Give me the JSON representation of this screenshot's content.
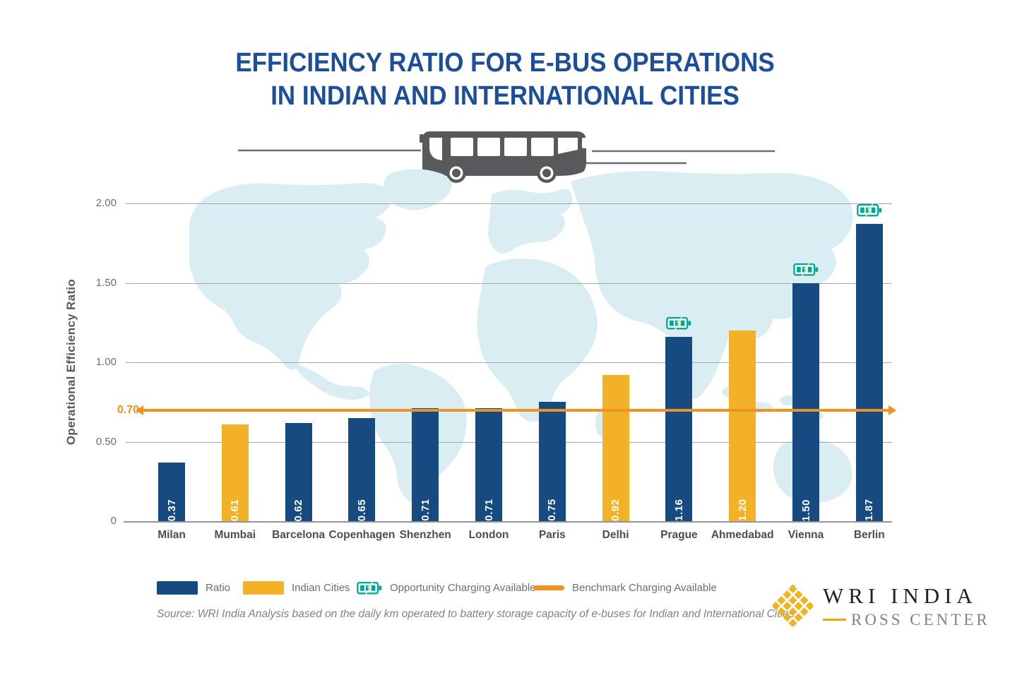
{
  "title": {
    "line1": "EFFICIENCY RATIO FOR E-BUS OPERATIONS",
    "line2": "IN INDIAN AND INTERNATIONAL CITIES"
  },
  "chart_data": {
    "type": "bar",
    "title": "Efficiency Ratio for E-Bus Operations in Indian and International Cities",
    "xlabel": "",
    "ylabel": "Operational Efficiency Ratio",
    "ylim": [
      0,
      2.0
    ],
    "grid": true,
    "legend_position": "bottom",
    "yticks": [
      {
        "label": "2.00",
        "value": 2.0
      },
      {
        "label": "1.50",
        "value": 1.5
      },
      {
        "label": "1.00",
        "value": 1.0
      },
      {
        "label": "0.50",
        "value": 0.5
      },
      {
        "label": "0",
        "value": 0
      }
    ],
    "benchmark": {
      "value": 0.7,
      "label": "0.70"
    },
    "categories": [
      "Milan",
      "Mumbai",
      "Barcelona",
      "Copenhagen",
      "Shenzhen",
      "London",
      "Paris",
      "Delhi",
      "Prague",
      "Ahmedabad",
      "Vienna",
      "Berlin"
    ],
    "values": [
      0.37,
      0.61,
      0.62,
      0.65,
      0.71,
      0.71,
      0.75,
      0.92,
      1.16,
      1.2,
      1.5,
      1.87
    ],
    "bars": [
      {
        "city": "Milan",
        "value": 0.37,
        "label": "0.37",
        "indian": false,
        "opportunity": false
      },
      {
        "city": "Mumbai",
        "value": 0.61,
        "label": "0.61",
        "indian": true,
        "opportunity": false
      },
      {
        "city": "Barcelona",
        "value": 0.62,
        "label": "0.62",
        "indian": false,
        "opportunity": false
      },
      {
        "city": "Copenhagen",
        "value": 0.65,
        "label": "0.65",
        "indian": false,
        "opportunity": false
      },
      {
        "city": "Shenzhen",
        "value": 0.71,
        "label": "0.71",
        "indian": false,
        "opportunity": false
      },
      {
        "city": "London",
        "value": 0.71,
        "label": "0.71",
        "indian": false,
        "opportunity": false
      },
      {
        "city": "Paris",
        "value": 0.75,
        "label": "0.75",
        "indian": false,
        "opportunity": false
      },
      {
        "city": "Delhi",
        "value": 0.92,
        "label": "0.92",
        "indian": true,
        "opportunity": false
      },
      {
        "city": "Prague",
        "value": 1.16,
        "label": "1.16",
        "indian": false,
        "opportunity": true
      },
      {
        "city": "Ahmedabad",
        "value": 1.2,
        "label": "1.20",
        "indian": true,
        "opportunity": false
      },
      {
        "city": "Vienna",
        "value": 1.5,
        "label": "1.50",
        "indian": false,
        "opportunity": true
      },
      {
        "city": "Berlin",
        "value": 1.87,
        "label": "1.87",
        "indian": false,
        "opportunity": true
      }
    ]
  },
  "legend": {
    "items": [
      {
        "label": "Ratio"
      },
      {
        "label": "Indian Cities"
      },
      {
        "label": "Opportunity Charging Available"
      },
      {
        "label": "Benchmark Charging Available"
      }
    ]
  },
  "source": "Source: WRI India Analysis based on the daily km operated to battery storage capacity of e-buses for Indian and International Cities",
  "logo": {
    "line1": "WRI INDIA",
    "line2": "ROSS CENTER"
  },
  "theme": {
    "navy": "#164A80",
    "titleblue": "#1D4E9A",
    "yellow": "#F2B126",
    "orange": "#EE9322",
    "teal": "#00A79A",
    "map": "#DAEDF2",
    "grid": "#A6A8AB",
    "baseline": "#939598",
    "tick": "#6D6E71",
    "axistitle": "#58595B",
    "citylabel": "#4D4E50",
    "legendtext": "#6D6E71",
    "sourcetext": "#808285",
    "busgray": "#58595B",
    "logodark": "#231F20",
    "logogray": "#808285",
    "logogold": "#F0B323"
  }
}
